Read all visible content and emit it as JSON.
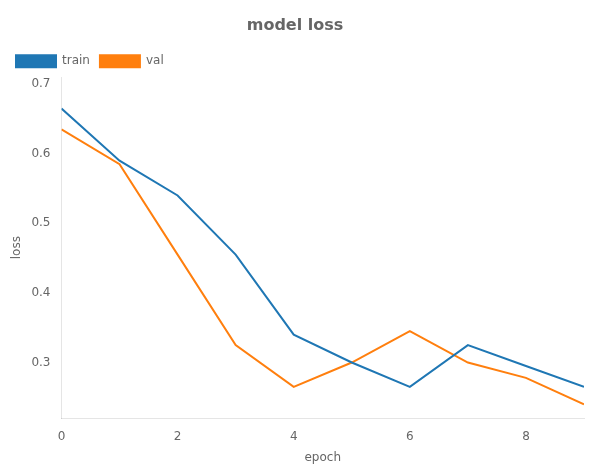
{
  "chart_data": {
    "type": "line",
    "title": "model loss",
    "x_label": "epoch",
    "y_label": "loss",
    "x": [
      0,
      1,
      2,
      3,
      4,
      5,
      6,
      7,
      8,
      9
    ],
    "series": [
      {
        "name": "train",
        "color": "#1f77b4",
        "values": [
          0.665,
          0.59,
          0.54,
          0.455,
          0.34,
          0.3,
          0.265,
          0.325,
          0.295,
          0.265
        ]
      },
      {
        "name": "val",
        "color": "#ff7f0e",
        "values": [
          0.635,
          0.585,
          0.455,
          0.325,
          0.265,
          0.3,
          0.345,
          0.3,
          0.278,
          0.24
        ]
      }
    ],
    "xlim": [
      0,
      9
    ],
    "xticks": [
      0,
      2,
      4,
      6,
      8
    ],
    "ylim": [
      0.22,
      0.71
    ],
    "yticks": [
      0.3,
      0.4,
      0.5,
      0.6,
      0.7
    ],
    "legend": "upper left",
    "grid": false
  }
}
